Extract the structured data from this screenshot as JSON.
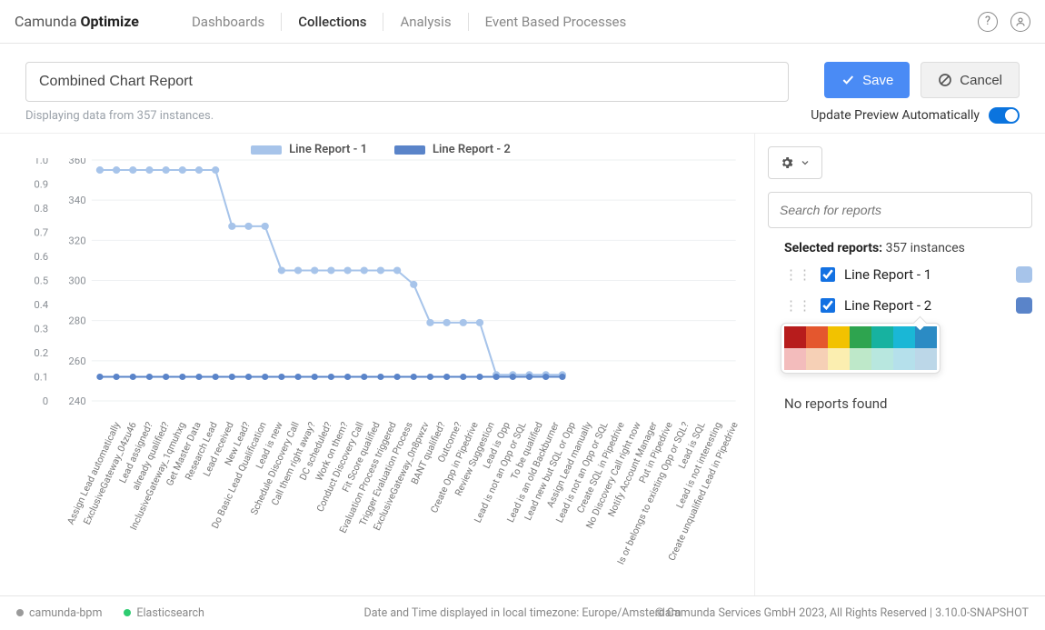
{
  "header": {
    "logo_light": "Camunda ",
    "logo_bold": "Optimize",
    "nav": [
      "Dashboards",
      "Collections",
      "Analysis",
      "Event Based Processes"
    ],
    "active_nav_index": 1
  },
  "toolbar": {
    "title_value": "Combined Chart Report",
    "subtitle": "Displaying data from 357 instances.",
    "save_label": "Save",
    "cancel_label": "Cancel",
    "auto_update_label": "Update Preview Automatically",
    "auto_update_on": true
  },
  "chart": {
    "type": "line",
    "legend": [
      {
        "label": "Line Report - 1",
        "color": "#a7c4ea"
      },
      {
        "label": "Line Report - 2",
        "color": "#5a84c9"
      }
    ],
    "axis_left": {
      "min": 0,
      "max": 1.0,
      "step": 0.1,
      "fmt": "fixed1",
      "color": "#8a8f95"
    },
    "axis_right": {
      "min": 240,
      "max": 360,
      "step": 20,
      "color": "#8a8f95"
    },
    "grid_color": "#eef0f2",
    "background": "#ffffff",
    "line_width_1": 2,
    "line_width_2": 2,
    "marker_radius_1": 4,
    "marker_radius_2": 3.5,
    "categories": [
      "Assign Lead automatically",
      "ExclusiveGateway_04zu46",
      "Lead assigned?",
      "already qualified?",
      "InclusiveGateway_1qmuhxg",
      "Get Master Data",
      "Research Lead",
      "Lead received",
      "New Lead?",
      "Do Basic Lead Qualification",
      "Lead is new",
      "Schedule Discovery Call",
      "Call them right away?",
      "DC scheduled?",
      "Work on them?",
      "Conduct Discovery Call",
      "Fit Score qualified",
      "Evaluation Process triggered",
      "Trigger Evaluation Process",
      "ExclusiveGateway_0n8pwzv",
      "BANT qualified?",
      "Outcome?",
      "Create Opp in Pipedrive",
      "Review Suggestion",
      "Lead is Opp",
      "Lead is not an Opp or SQL",
      "To be qualified",
      "Lead is an old Backburner",
      "Lead new but SQL or Opp",
      "Assign Lead manually",
      "Lead is not an Opp or SQL",
      "Create SQL in Pipedrive",
      "No Discovery Call right now",
      "Notify Account Manager",
      "Put in Pipedrive",
      "Is or belongs to existing Opp or SQL?",
      "Lead is SQL",
      "Lead is not interesting",
      "Create unqualified Lead in Pipedrive"
    ],
    "series1_count": 29,
    "series1_right_values": [
      355,
      355,
      355,
      355,
      355,
      355,
      355,
      355,
      327,
      327,
      327,
      305,
      305,
      305,
      305,
      305,
      305,
      305,
      305,
      298,
      279,
      279,
      279,
      279,
      253,
      253,
      253,
      253,
      253
    ],
    "series2_left_value": 0.1,
    "series2_count": 29
  },
  "side": {
    "search_placeholder": "Search for reports",
    "selected_label": "Selected reports:",
    "selected_count_text": "357 instances",
    "reports": [
      {
        "label": "Line Report - 1",
        "color": "#a7c4ea",
        "checked": true
      },
      {
        "label": "Line Report - 2",
        "color": "#5a84c9",
        "checked": true
      }
    ],
    "picker_colors_row1": [
      "#b71c1c",
      "#e4572e",
      "#f2c200",
      "#2ea44f",
      "#17b2a0",
      "#1ab7d6",
      "#2b8bc4"
    ],
    "picker_colors_row2": [
      "#f3bcbc",
      "#f6d0b6",
      "#fbeeb0",
      "#bee8c9",
      "#b8e7df",
      "#b5e0eb",
      "#bcd7e8"
    ],
    "no_reports_label": "No reports found"
  },
  "footer": {
    "engine_status": {
      "label": "camunda-bpm",
      "color": "#9a9a9a"
    },
    "es_status": {
      "label": "Elasticsearch",
      "color": "#2ecc71"
    },
    "tz": "Date and Time displayed in local timezone: Europe/Amsterdam",
    "copyright": "© Camunda Services GmbH 2023, All Rights Reserved | 3.10.0-SNAPSHOT"
  }
}
